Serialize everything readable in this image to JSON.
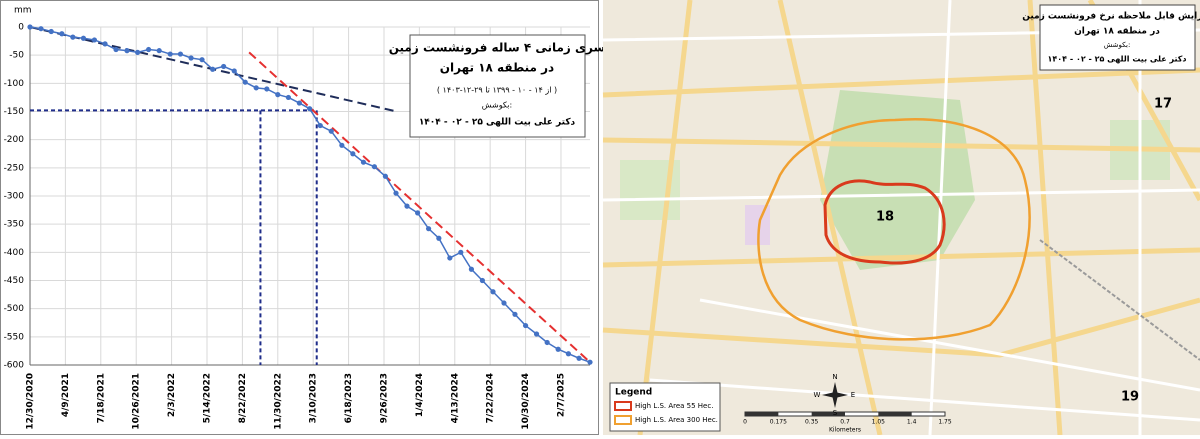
{
  "chart_data": {
    "type": "line",
    "y_unit_label": "mm",
    "box_text": [
      "سری زمانی ۴ ساله فرونشست زمین",
      "در منطقه ۱۸ تهران",
      "( از ۱۴ - ۱۰ - ۱۳۹۹ تا ۲۹-۱۲-۱۴۰۳ )",
      "بکوشش:",
      "دکتر علی بیت اللهی ۲۵ - ۰۲ - ۱۴۰۴"
    ],
    "x": [
      "12/30/2020",
      "1/30/2021",
      "2/28/2021",
      "3/30/2021",
      "4/30/2021",
      "5/30/2021",
      "6/30/2021",
      "7/30/2021",
      "8/30/2021",
      "9/30/2021",
      "10/30/2021",
      "11/30/2021",
      "12/30/2021",
      "1/30/2022",
      "2/28/2022",
      "3/30/2022",
      "4/30/2022",
      "5/30/2022",
      "6/30/2022",
      "7/30/2022",
      "8/30/2022",
      "9/30/2022",
      "10/30/2022",
      "11/30/2022",
      "12/30/2022",
      "1/30/2023",
      "2/28/2023",
      "3/30/2023",
      "4/30/2023",
      "5/30/2023",
      "6/30/2023",
      "7/30/2023",
      "8/30/2023",
      "9/30/2023",
      "10/30/2023",
      "11/30/2023",
      "12/30/2023",
      "1/30/2024",
      "2/28/2024",
      "3/30/2024",
      "4/30/2024",
      "5/30/2024",
      "6/30/2024",
      "7/30/2024",
      "8/30/2024",
      "9/30/2024",
      "10/30/2024",
      "11/30/2024",
      "12/30/2024",
      "1/30/2025",
      "2/28/2025",
      "3/30/2025",
      "4/30/2025"
    ],
    "series": [
      {
        "color": "#4472c4",
        "values": [
          0,
          -3,
          -8,
          -12,
          -18,
          -20,
          -23,
          -30,
          -40,
          -42,
          -45,
          -40,
          -42,
          -48,
          -48,
          -55,
          -58,
          -75,
          -70,
          -78,
          -98,
          -108,
          -110,
          -120,
          -125,
          -135,
          -145,
          -175,
          -185,
          -210,
          -225,
          -240,
          -248,
          -265,
          -295,
          -318,
          -330,
          -358,
          -375,
          -410,
          -400,
          -430,
          -450,
          -470,
          -490,
          -510,
          -530,
          -545,
          -560,
          -572,
          -580,
          -588,
          -595
        ]
      }
    ],
    "trend_lines": [
      {
        "color": "#1f2d5a",
        "x": [
          "12/30/2020",
          "11/1/2023"
        ],
        "values": [
          0,
          -150
        ]
      },
      {
        "color": "#e53030",
        "x": [
          "9/10/2022",
          "4/30/2025"
        ],
        "values": [
          -45,
          -595
        ]
      }
    ],
    "guides": {
      "color": "#1f2d8a",
      "y": -148,
      "x": [
        "10/12/2022",
        "3/20/2023"
      ]
    },
    "xlim": [
      "12/30/2020",
      "4/30/2025"
    ],
    "xticks": [
      "12/30/2020",
      "4/9/2021",
      "7/18/2021",
      "10/26/2021",
      "2/3/2022",
      "5/14/2022",
      "8/22/2022",
      "11/30/2022",
      "3/10/2023",
      "6/18/2023",
      "9/26/2023",
      "1/4/2024",
      "4/13/2024",
      "7/22/2024",
      "10/30/2024",
      "2/7/2025"
    ],
    "ylim": [
      -600,
      0
    ],
    "yticks": [
      0,
      -50,
      -100,
      -150,
      -200,
      -250,
      -300,
      -350,
      -400,
      -450,
      -500,
      -550,
      -600
    ],
    "grid": true
  },
  "map": {
    "title": [
      "افزایش قابل ملاحظه نرخ فرونشست زمین",
      "در منطقه ۱۸ تهران",
      "بکوشش:",
      "دکتر علی بیت اللهی ۲۵ - ۰۲ - ۱۴۰۴"
    ],
    "zones": [
      "18",
      "17",
      "19"
    ],
    "legend": {
      "title": "Legend",
      "items": [
        "High L.S. Area 55 Hec.",
        "High L.S. Area 300 Hec."
      ]
    },
    "scale": {
      "ticks": [
        "0",
        "0.175",
        "0.35",
        "0.7",
        "1.05",
        "1.4",
        "1.75"
      ],
      "unit": "Kilometers"
    },
    "compass": [
      "N",
      "S",
      "E",
      "W"
    ]
  }
}
